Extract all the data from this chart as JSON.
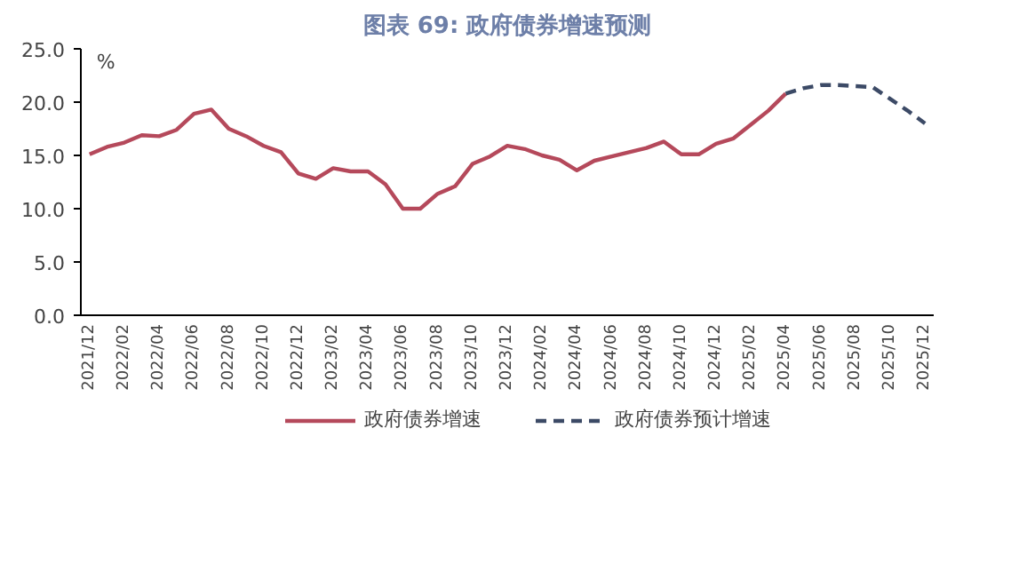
{
  "chart_data": {
    "type": "line",
    "title": "图表 69: 政府债券增速预测",
    "ylabel": "%",
    "categories": [
      "2021/12",
      null,
      "2022/02",
      null,
      "2022/04",
      null,
      "2022/06",
      null,
      "2022/08",
      null,
      "2022/10",
      null,
      "2022/12",
      null,
      "2023/02",
      null,
      "2023/04",
      null,
      "2023/06",
      null,
      "2023/08",
      null,
      "2023/10",
      null,
      "2023/12",
      null,
      "2024/02",
      null,
      "2024/04",
      null,
      "2024/06",
      null,
      "2024/08",
      null,
      "2024/10",
      null,
      "2024/12",
      null,
      "2025/02",
      null,
      "2025/04",
      null,
      "2025/06",
      null,
      "2025/08",
      null,
      "2025/10",
      null,
      "2025/12"
    ],
    "series": [
      {
        "name": "政府债券增速",
        "color": "#b5495b",
        "line_style": "solid",
        "values": [
          15.1,
          15.8,
          16.2,
          16.9,
          16.8,
          17.4,
          18.9,
          19.3,
          17.5,
          16.8,
          15.9,
          15.3,
          13.3,
          12.8,
          13.8,
          13.5,
          13.5,
          12.3,
          10.0,
          10.0,
          11.4,
          12.1,
          14.2,
          14.9,
          15.9,
          15.6,
          15.0,
          14.6,
          13.6,
          14.5,
          14.9,
          15.3,
          15.7,
          16.3,
          15.1,
          15.1,
          16.1,
          16.6,
          17.9,
          19.2,
          20.8,
          null,
          null,
          null,
          null,
          null,
          null,
          null,
          null
        ]
      },
      {
        "name": "政府债券预计增速",
        "color": "#3c4a66",
        "line_style": "dashed",
        "values": [
          null,
          null,
          null,
          null,
          null,
          null,
          null,
          null,
          null,
          null,
          null,
          null,
          null,
          null,
          null,
          null,
          null,
          null,
          null,
          null,
          null,
          null,
          null,
          null,
          null,
          null,
          null,
          null,
          null,
          null,
          null,
          null,
          null,
          null,
          null,
          null,
          null,
          null,
          null,
          null,
          20.8,
          21.3,
          21.6,
          21.6,
          21.5,
          21.4,
          20.3,
          19.2,
          18.0
        ]
      }
    ],
    "ylim": [
      0,
      25
    ],
    "yticks": [
      {
        "value": 0,
        "label": "0.0"
      },
      {
        "value": 5,
        "label": "5.0"
      },
      {
        "value": 10,
        "label": "10.0"
      },
      {
        "value": 15,
        "label": "15.0"
      },
      {
        "value": 20,
        "label": "20.0"
      },
      {
        "value": 25,
        "label": "25.0"
      }
    ],
    "grid": false,
    "legend": "bottom",
    "marker": "none"
  }
}
